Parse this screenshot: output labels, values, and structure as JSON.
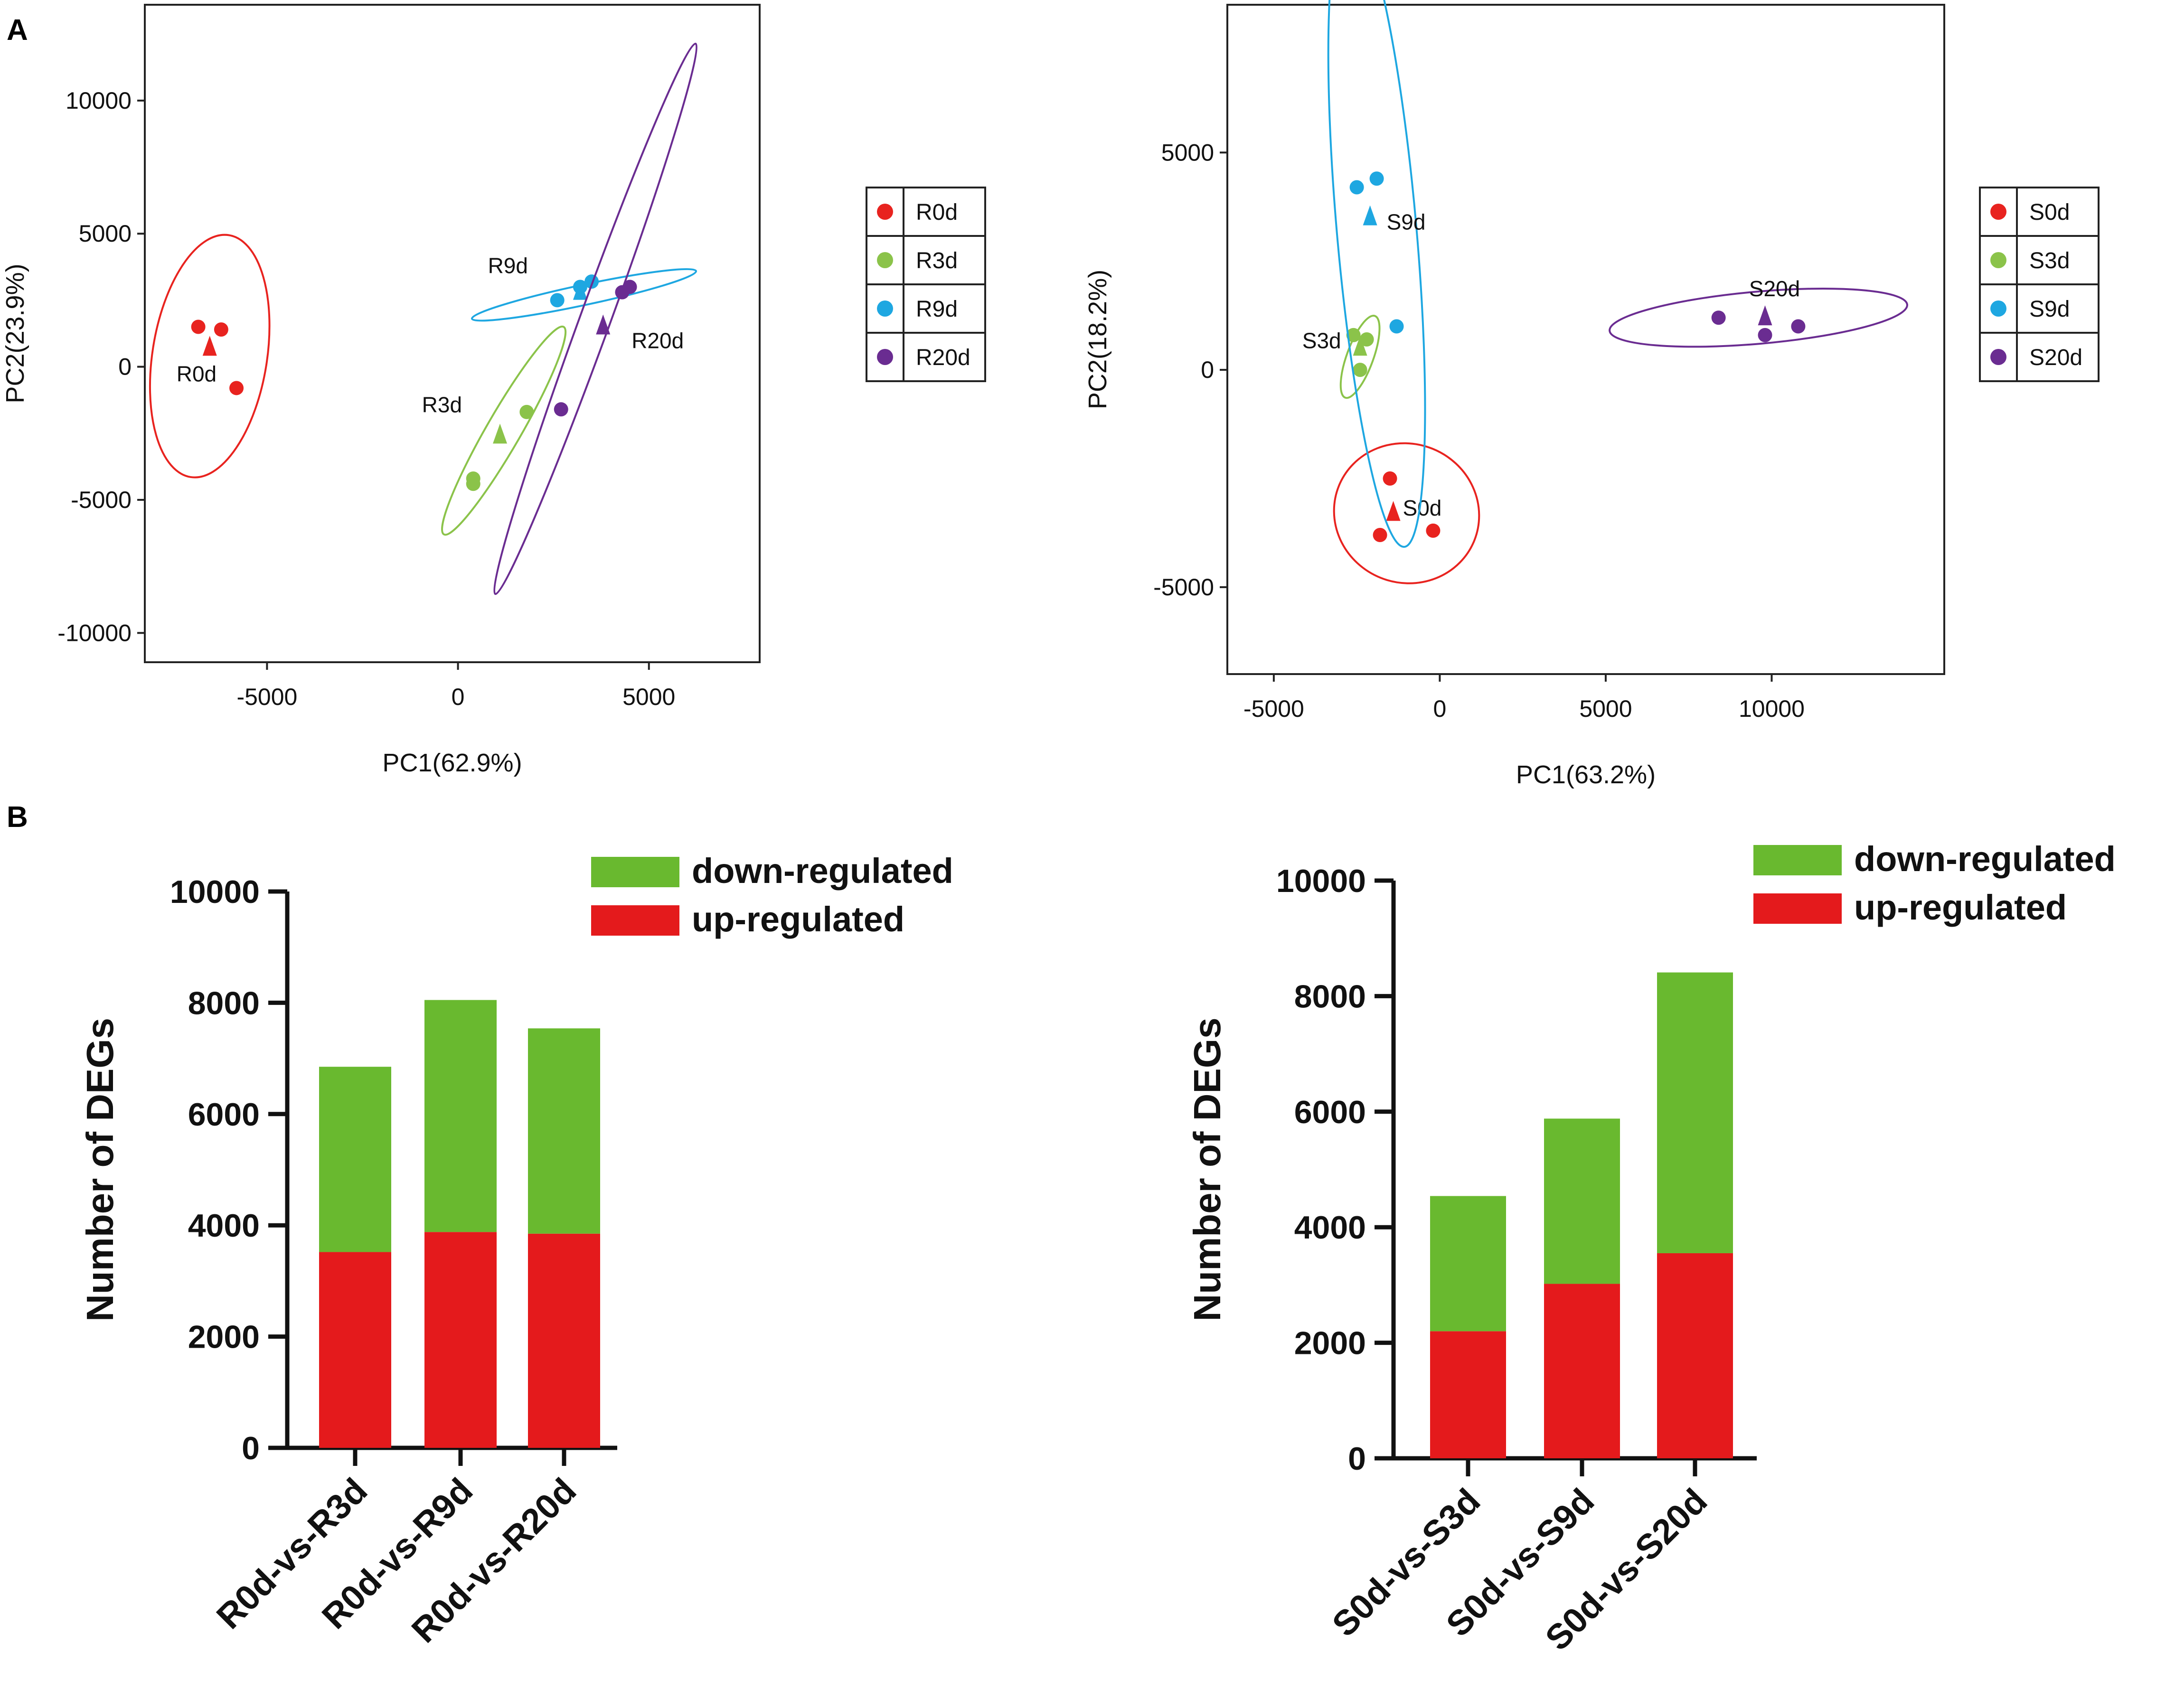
{
  "panel_labels": [
    "A",
    "B"
  ],
  "chart_data": [
    {
      "id": "pca_r",
      "type": "scatter",
      "xlabel": "PC1(62.9%)",
      "ylabel": "PC2(23.9%)",
      "xlim": [
        -8200,
        7900
      ],
      "ylim": [
        -11100,
        13600
      ],
      "xticks": [
        -5000,
        0,
        5000
      ],
      "yticks": [
        10000,
        5000,
        0,
        -5000,
        -10000
      ],
      "groups": [
        {
          "name": "R0d",
          "label": "R0d",
          "color": "#e8231f",
          "points": [
            [
              -6800,
              1500
            ],
            [
              -6200,
              1400
            ],
            [
              -5800,
              -800
            ]
          ],
          "centroid": [
            -6500,
            700
          ],
          "ellipse": {
            "center": [
              -6500,
              400
            ],
            "rx": 1500,
            "ry": 4600,
            "angle": 9
          }
        },
        {
          "name": "R3d",
          "label": "R3d",
          "color": "#8bc34a",
          "points": [
            [
              400,
              -4200
            ],
            [
              1800,
              -1700
            ],
            [
              400,
              -4400
            ]
          ],
          "centroid": [
            1100,
            -2600
          ],
          "ellipse": {
            "center": [
              1200,
              -2400
            ],
            "rx": 450,
            "ry": 4500,
            "angle": 30
          }
        },
        {
          "name": "R9d",
          "label": "R9d",
          "color": "#1ea7e1",
          "points": [
            [
              2600,
              2500
            ],
            [
              3200,
              3000
            ],
            [
              3500,
              3200
            ]
          ],
          "centroid": [
            3200,
            2800
          ],
          "ellipse": {
            "center": [
              3300,
              2700
            ],
            "rx": 3000,
            "ry": 380,
            "angle": -12
          }
        },
        {
          "name": "R20d",
          "label": "R20d",
          "color": "#6a2c91",
          "points": [
            [
              2700,
              -1600
            ],
            [
              4300,
              2800
            ],
            [
              4500,
              3000
            ]
          ],
          "centroid": [
            3800,
            1500
          ],
          "ellipse": {
            "center": [
              3600,
              1800
            ],
            "rx": 400,
            "ry": 11000,
            "angle": 20
          }
        }
      ]
    },
    {
      "id": "pca_s",
      "type": "scatter",
      "xlabel": "PC1(63.2%)",
      "ylabel": "PC2(18.2%)",
      "xlim": [
        -6400,
        15200
      ],
      "ylim": [
        -7000,
        8400
      ],
      "xticks": [
        -5000,
        0,
        5000,
        10000
      ],
      "yticks": [
        5000,
        0,
        -5000
      ],
      "groups": [
        {
          "name": "S0d",
          "label": "S0d",
          "color": "#e8231f",
          "points": [
            [
              -1500,
              -2500
            ],
            [
              -1800,
              -3800
            ],
            [
              -200,
              -3700
            ]
          ],
          "centroid": [
            -1400,
            -3300
          ],
          "ellipse": {
            "center": [
              -1000,
              -3300
            ],
            "rx": 2200,
            "ry": 1600,
            "angle": 22
          }
        },
        {
          "name": "S3d",
          "label": "S3d",
          "color": "#8bc34a",
          "points": [
            [
              -2600,
              800
            ],
            [
              -2400,
              0
            ],
            [
              -2200,
              700
            ]
          ],
          "centroid": [
            -2400,
            500
          ],
          "ellipse": {
            "center": [
              -2400,
              300
            ],
            "rx": 400,
            "ry": 1000,
            "angle": 20
          }
        },
        {
          "name": "S9d",
          "label": "S9d",
          "color": "#1ea7e1",
          "points": [
            [
              -2500,
              4200
            ],
            [
              -1900,
              4400
            ],
            [
              -1300,
              1000
            ]
          ],
          "centroid": [
            -2100,
            3500
          ],
          "ellipse": {
            "center": [
              -1900,
              3200
            ],
            "rx": 1200,
            "ry": 7300,
            "angle": -5
          }
        },
        {
          "name": "S20d",
          "label": "S20d",
          "color": "#6a2c91",
          "points": [
            [
              8400,
              1200
            ],
            [
              9800,
              800
            ],
            [
              10800,
              1000
            ]
          ],
          "centroid": [
            9800,
            1200
          ],
          "ellipse": {
            "center": [
              9600,
              1200
            ],
            "rx": 4500,
            "ry": 600,
            "angle": -5
          }
        }
      ]
    },
    {
      "id": "deg_r",
      "type": "bar",
      "stacked": true,
      "categories": [
        "R0d-vs-R3d",
        "R0d-vs-R9d",
        "R0d-vs-R20d"
      ],
      "series": [
        {
          "name": "up-regulated",
          "color": "#e41a1c",
          "values": [
            3520,
            3880,
            3850
          ]
        },
        {
          "name": "down-regulated",
          "color": "#69b92f",
          "values": [
            3330,
            4170,
            3690
          ]
        }
      ],
      "ylabel": "Number of DEGs",
      "ylim": [
        0,
        10000
      ],
      "yticks": [
        0,
        2000,
        4000,
        6000,
        8000,
        10000
      ],
      "legend_order": [
        "down-regulated",
        "up-regulated"
      ]
    },
    {
      "id": "deg_s",
      "type": "bar",
      "stacked": true,
      "categories": [
        "S0d-vs-S3d",
        "S0d-vs-S9d",
        "S0d-vs-S20d"
      ],
      "series": [
        {
          "name": "up-regulated",
          "color": "#e41a1c",
          "values": [
            2200,
            3020,
            3550
          ]
        },
        {
          "name": "down-regulated",
          "color": "#69b92f",
          "values": [
            2340,
            2860,
            4860
          ]
        }
      ],
      "ylabel": "Number of DEGs",
      "ylim": [
        0,
        10000
      ],
      "yticks": [
        0,
        2000,
        4000,
        6000,
        8000,
        10000
      ],
      "legend_order": [
        "down-regulated",
        "up-regulated"
      ]
    }
  ]
}
